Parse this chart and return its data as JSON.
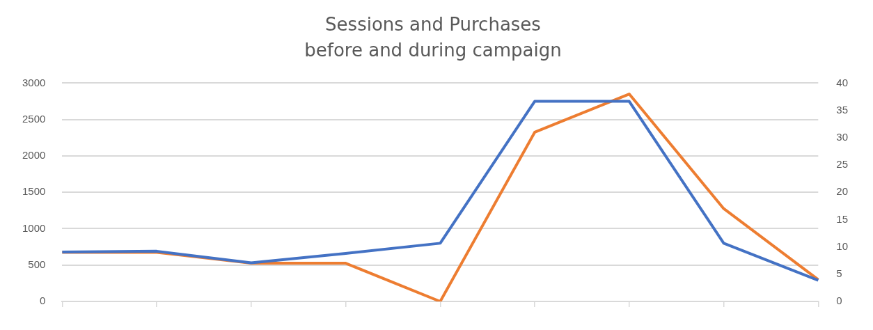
{
  "chart_data": {
    "type": "line",
    "title": "Sessions and Purchases\nbefore and during campaign",
    "categories": [
      null,
      null,
      null,
      null,
      null,
      null,
      null,
      null,
      null
    ],
    "series": [
      {
        "color": "#4472c4",
        "values": [
          680,
          690,
          530,
          660,
          800,
          2750,
          2750,
          800,
          290
        ]
      },
      {
        "color": "#ed7d31",
        "values": [
          9,
          9,
          7,
          7,
          0,
          31,
          38,
          17,
          4
        ],
        "axis": "y2"
      }
    ],
    "ylim": [
      0,
      3000
    ],
    "yticks": [
      0,
      500,
      1000,
      1500,
      2000,
      2500,
      3000
    ],
    "y2lim": [
      0,
      40
    ],
    "y2ticks": [
      0,
      5,
      10,
      15,
      20,
      25,
      30,
      35,
      40
    ],
    "grid": "y",
    "legend": false,
    "tick_labels": "y",
    "marker": "none",
    "line_style": "solid"
  }
}
